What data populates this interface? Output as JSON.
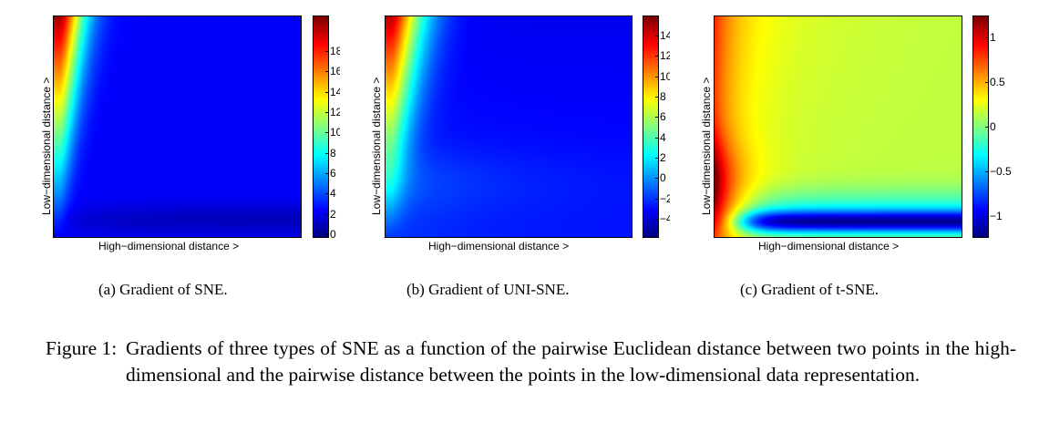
{
  "panels": [
    {
      "id": "sne",
      "xlabel": "High−dimensional distance >",
      "ylabel": "Low−dimensional distance >",
      "caption": "(a)  Gradient of SNE.",
      "colorbar_ticks": [
        "18",
        "16",
        "14",
        "12",
        "10",
        "8",
        "6",
        "4",
        "2",
        "0"
      ],
      "colormap": "jet"
    },
    {
      "id": "uni",
      "xlabel": "High−dimensional distance >",
      "ylabel": "Low−dimensional distance >",
      "caption": "(b)  Gradient of UNI-SNE.",
      "colorbar_ticks": [
        "14",
        "12",
        "10",
        "8",
        "6",
        "4",
        "2",
        "0",
        "−2",
        "−4"
      ],
      "colormap": "jet"
    },
    {
      "id": "tsne",
      "xlabel": "High−dimensional distance >",
      "ylabel": "Low−dimensional distance >",
      "caption": "(c)  Gradient of t-SNE.",
      "colorbar_ticks": [
        "1",
        "0.5",
        "0",
        "−0.5",
        "−1"
      ],
      "colormap": "jet"
    }
  ],
  "figure_caption": {
    "label": "Figure 1:",
    "text": "Gradients of three types of SNE as a function of the pairwise Euclidean distance between two points in the high-dimensional and the pairwise distance between the points in the low-dimensional data representation."
  }
}
